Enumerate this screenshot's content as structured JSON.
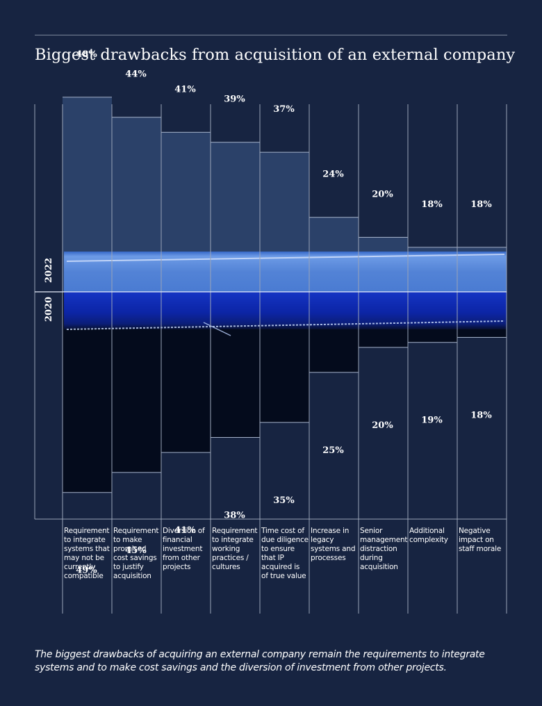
{
  "chart_data": {
    "type": "bar",
    "title": "Biggest drawbacks from acquisition of an external company",
    "categories": [
      "Requirement to integrate systems that may not be currently compatible",
      "Requirement to make promised cost savings to justify acquisition",
      "Diversion of financial investment from other projects",
      "Requirement to integrate working practices / cultures",
      "Time cost of due diligence to ensure that IP acquired is of true value",
      "Increase in legacy systems and processes",
      "Senior management distraction during acquisition",
      "Additional complexity",
      "Negative impact on staff morale"
    ],
    "series": [
      {
        "name": "2022",
        "values": [
          48,
          44,
          41,
          39,
          37,
          24,
          20,
          18,
          18
        ],
        "labels": [
          "48%",
          "44%",
          "41%",
          "39%",
          "37%",
          "24%",
          "20%",
          "18%",
          "18%"
        ]
      },
      {
        "name": "2020",
        "values": [
          49,
          45,
          41,
          38,
          35,
          25,
          20,
          19,
          18
        ],
        "labels": [
          "49%",
          "45%",
          "41%",
          "38%",
          "35%",
          "25%",
          "20%",
          "19%",
          "18%"
        ]
      }
    ],
    "layout": "mirrored",
    "ylim": [
      0,
      100
    ],
    "colors": {
      "upper": "#2b4169",
      "lower": "#040b1c",
      "band_light": "#5d8fe0",
      "band_dark": "#0d28b8"
    }
  },
  "caption": "The biggest drawbacks of acquiring an external company remain the requirements to integrate systems and to make cost savings and the diversion of investment from other projects."
}
